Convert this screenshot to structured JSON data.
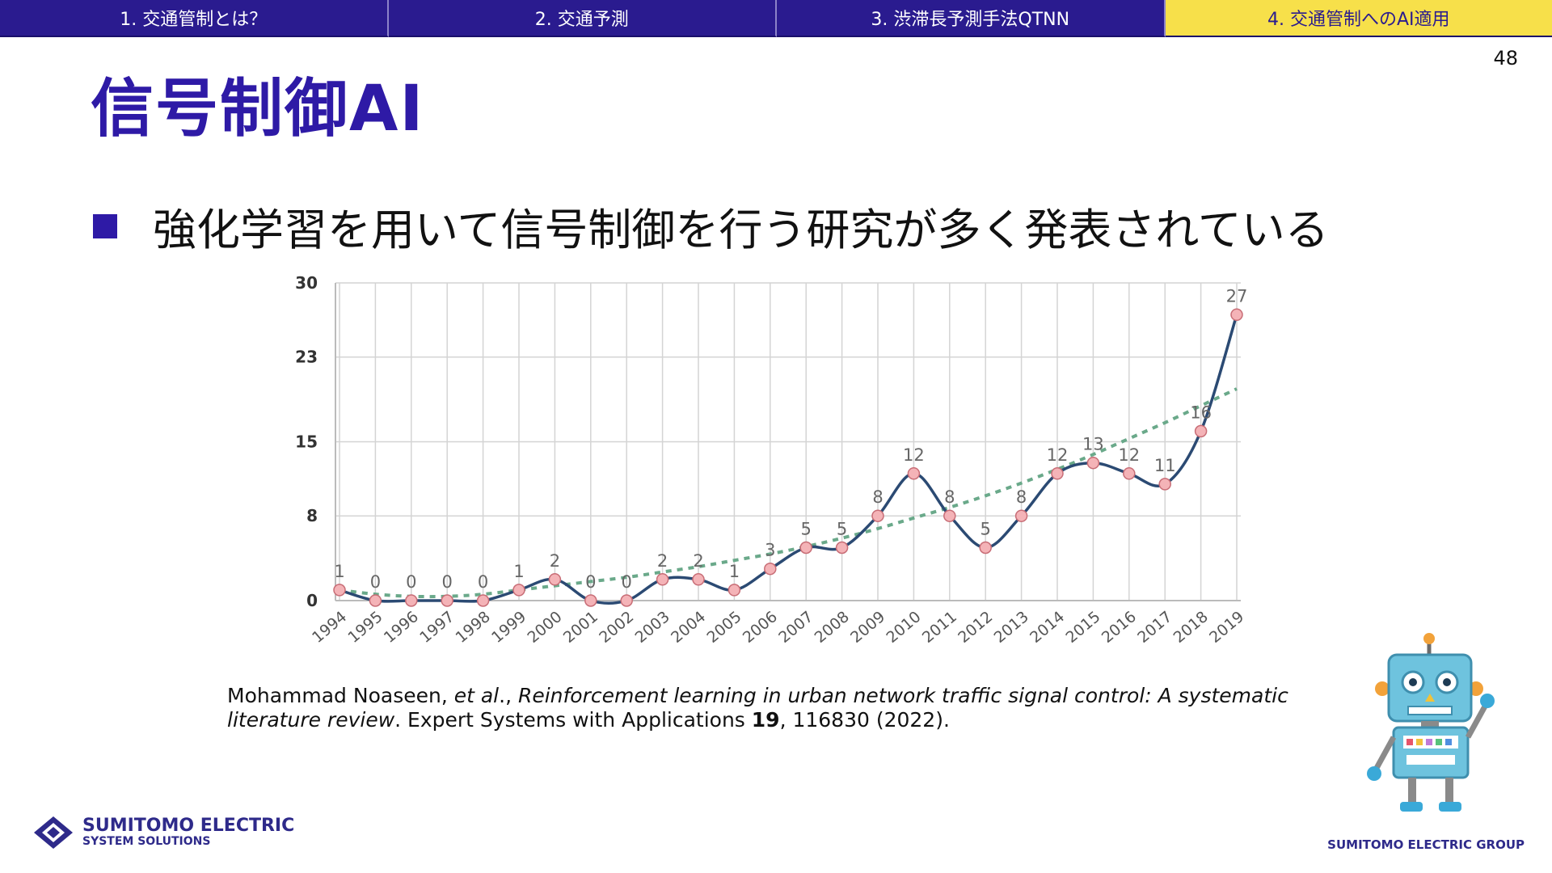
{
  "nav": {
    "tabs": [
      {
        "label": "1. 交通管制とは？",
        "active": false
      },
      {
        "label": "2. 交通予測",
        "active": false
      },
      {
        "label": "3. 渋滞長予測手法QTNN",
        "active": false
      },
      {
        "label": "4. 交通管制へのAI適用",
        "active": true
      }
    ]
  },
  "page_number": "48",
  "title": "信号制御AI",
  "bullet": "強化学習を用いて信号制御を行う研究が多く発表されている",
  "chart_data": {
    "type": "line",
    "categories": [
      "1994",
      "1995",
      "1996",
      "1997",
      "1998",
      "1999",
      "2000",
      "2001",
      "2002",
      "2003",
      "2004",
      "2005",
      "2006",
      "2007",
      "2008",
      "2009",
      "2010",
      "2011",
      "2012",
      "2013",
      "2014",
      "2015",
      "2016",
      "2017",
      "2018",
      "2019"
    ],
    "series": [
      {
        "values": [
          1,
          0,
          0,
          0,
          0,
          1,
          2,
          0,
          0,
          2,
          2,
          1,
          3,
          5,
          5,
          8,
          12,
          8,
          5,
          8,
          12,
          13,
          12,
          11,
          16,
          27
        ],
        "color": "#2b4a73",
        "marker_color": "#f4b3b7"
      },
      {
        "type": "trend",
        "style": "dashed",
        "color": "#6aa98a",
        "values": [
          1,
          0.6,
          0.4,
          0.4,
          0.6,
          1.0,
          1.4,
          1.8,
          2.2,
          2.7,
          3.2,
          3.8,
          4.4,
          5.1,
          5.9,
          6.8,
          7.8,
          8.8,
          9.9,
          11.1,
          12.4,
          13.8,
          15.3,
          16.8,
          18.4,
          20.0
        ]
      }
    ],
    "y_ticks": [
      "0",
      "8",
      "15",
      "23",
      "30"
    ],
    "ylim": [
      0,
      30
    ],
    "grid": true,
    "data_labels": [
      "1",
      "0",
      "0",
      "0",
      "0",
      "1",
      "2",
      "0",
      "0",
      "2",
      "2",
      "1",
      "3",
      "5",
      "5",
      "8",
      "12",
      "8",
      "5",
      "8",
      "12",
      "13",
      "12",
      "11",
      "16",
      "27"
    ]
  },
  "citation": {
    "authors": "Mohammad Noaseen, ",
    "etal": "et al",
    "sep": "., ",
    "paper_title": "Reinforcement learning in urban network traffic signal control: A systematic literature review",
    "journal": ". Expert Systems with Applications ",
    "volume": "19",
    "rest": ", 116830 (2022)."
  },
  "logo": {
    "main": "SUMITOMO ELECTRIC",
    "sub": "SYSTEM SOLUTIONS"
  },
  "group_name": "SUMITOMO ELECTRIC GROUP",
  "colors": {
    "nav_bg": "#2a1b8f",
    "nav_active": "#f7e04a",
    "title": "#2e1aa6",
    "line": "#2b4a73",
    "trend": "#6aa98a",
    "marker": "#f4b3b7"
  }
}
